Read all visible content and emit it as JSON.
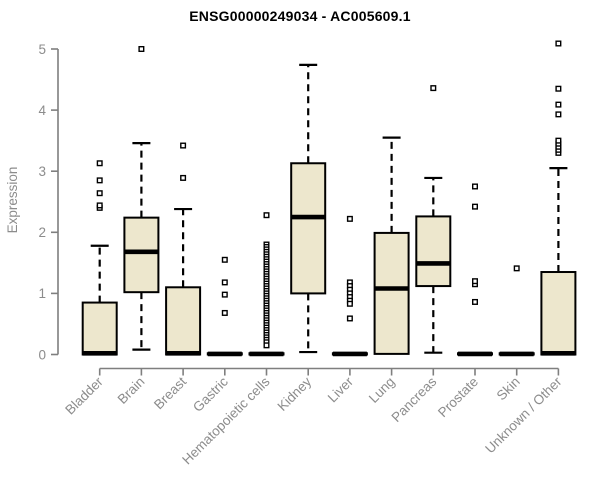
{
  "page": {
    "background": "#FFFFFF"
  },
  "chart_data": {
    "type": "boxplot",
    "title": "ENSG00000249034 - AC005609.1",
    "ylabel": "Expression",
    "xlabel": "",
    "ylim": [
      0,
      5
    ],
    "yticks": [
      0,
      1,
      2,
      3,
      4,
      5
    ],
    "grid": false,
    "legend": false,
    "colors": {
      "box_fill": "#EDE7CD",
      "box_stroke": "#000000",
      "median": "#000000",
      "whisker": "#000000",
      "outlier_stroke": "#000000",
      "outlier_fill": "#FFFFFF",
      "axis": "#7F7F7F",
      "tick_label": "#8C8C8C",
      "title_color": "#000000"
    },
    "categories": [
      "Bladder",
      "Brain",
      "Breast",
      "Gastric",
      "Hematopoietic cells",
      "Kidney",
      "Liver",
      "Lung",
      "Pancreas",
      "Prostate",
      "Skin",
      "Unknown / Other"
    ],
    "series": [
      {
        "category": "Bladder",
        "low": 0,
        "q1": 0,
        "median": 0.02,
        "q3": 0.85,
        "high": 1.78,
        "outliers": [
          2.4,
          2.44,
          2.64,
          2.85,
          3.13
        ]
      },
      {
        "category": "Brain",
        "low": 0.08,
        "q1": 1.02,
        "median": 1.68,
        "q3": 2.24,
        "high": 3.46,
        "outliers": [
          5.0
        ]
      },
      {
        "category": "Breast",
        "low": 0,
        "q1": 0,
        "median": 0.02,
        "q3": 1.1,
        "high": 2.38,
        "outliers": [
          2.89,
          3.42
        ]
      },
      {
        "category": "Gastric",
        "low": 0,
        "q1": 0,
        "median": 0.01,
        "q3": 0.02,
        "high": 0.02,
        "outliers": [
          0.68,
          0.98,
          1.18,
          1.55
        ]
      },
      {
        "category": "Hematopoietic cells",
        "low": 0,
        "q1": 0,
        "median": 0.01,
        "q3": 0.02,
        "high": 0.02,
        "outliers": [
          2.28,
          1.8,
          1.76,
          1.72,
          1.68,
          1.64,
          1.6,
          1.56,
          1.52,
          1.48,
          1.44,
          1.4,
          1.36,
          1.32,
          1.28,
          1.24,
          1.2,
          1.16,
          1.12,
          1.08,
          1.04,
          1.0,
          0.96,
          0.92,
          0.88,
          0.84,
          0.8,
          0.76,
          0.72,
          0.68,
          0.64,
          0.6,
          0.56,
          0.52,
          0.48,
          0.44,
          0.4,
          0.36,
          0.32,
          0.28,
          0.24,
          0.2,
          0.15
        ]
      },
      {
        "category": "Kidney",
        "low": 0.04,
        "q1": 1.0,
        "median": 2.25,
        "q3": 3.13,
        "high": 4.74,
        "outliers": []
      },
      {
        "category": "Liver",
        "low": 0,
        "q1": 0,
        "median": 0.01,
        "q3": 0.02,
        "high": 0.02,
        "outliers": [
          2.22,
          1.18,
          1.12,
          1.06,
          1.0,
          0.94,
          0.88,
          0.83,
          0.59
        ]
      },
      {
        "category": "Lung",
        "low": 0.01,
        "q1": 0.01,
        "median": 1.08,
        "q3": 1.99,
        "high": 3.55,
        "outliers": []
      },
      {
        "category": "Pancreas",
        "low": 0.03,
        "q1": 1.12,
        "median": 1.49,
        "q3": 2.26,
        "high": 2.89,
        "outliers": [
          4.36
        ]
      },
      {
        "category": "Prostate",
        "low": 0,
        "q1": 0,
        "median": 0.01,
        "q3": 0.02,
        "high": 0.02,
        "outliers": [
          0.86,
          1.15,
          1.2,
          2.42,
          2.75
        ]
      },
      {
        "category": "Skin",
        "low": 0,
        "q1": 0,
        "median": 0.01,
        "q3": 0.02,
        "high": 0.02,
        "outliers": [
          1.41
        ]
      },
      {
        "category": "Unknown / Other",
        "low": 0,
        "q1": 0,
        "median": 0.02,
        "q3": 1.35,
        "high": 3.05,
        "outliers": [
          3.3,
          3.35,
          3.4,
          3.45,
          3.5,
          3.93,
          4.09,
          4.35,
          5.09
        ]
      }
    ]
  }
}
